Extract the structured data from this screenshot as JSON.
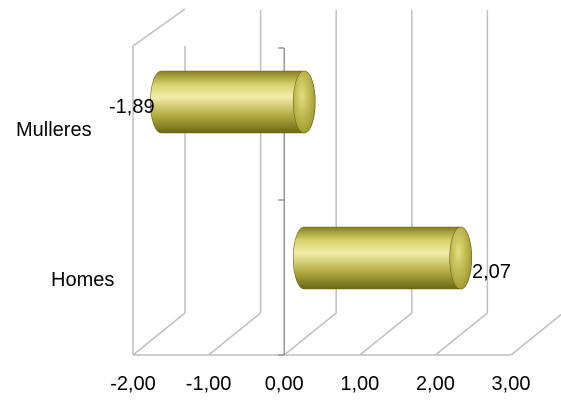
{
  "chart_data": {
    "type": "bar",
    "orientation": "horizontal",
    "style": "3d-cylinder",
    "categories": [
      "Mulleres",
      "Homes"
    ],
    "values": [
      -1.89,
      2.07
    ],
    "data_labels": [
      "-1,89",
      "2,07"
    ],
    "x_ticks": [
      "-2,00",
      "-1,00",
      "0,00",
      "1,00",
      "2,00",
      "3,00"
    ],
    "xlim": [
      -2,
      3
    ],
    "grid": true,
    "legend": "none",
    "bar_color": "#b5ad4a"
  }
}
